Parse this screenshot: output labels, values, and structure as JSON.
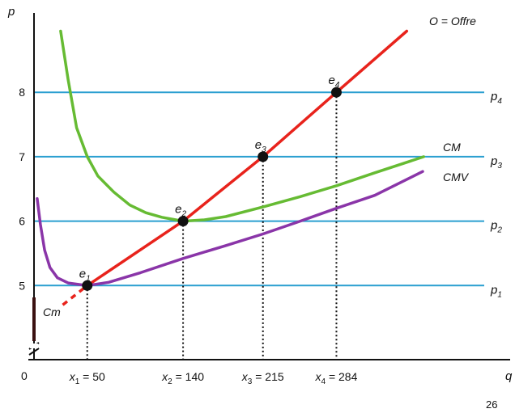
{
  "page_number": "26",
  "chart_data": {
    "type": "line",
    "xlabel": "q",
    "ylabel": "p",
    "origin_label": "0",
    "ylim": [
      4,
      9
    ],
    "xlim": [
      0,
      350
    ],
    "y_ticks": [
      5,
      6,
      7,
      8
    ],
    "y_tick_labels": [
      "5",
      "6",
      "7",
      "8"
    ],
    "price_lines": [
      {
        "value": 5,
        "base": "p",
        "sub": "1"
      },
      {
        "value": 6,
        "base": "p",
        "sub": "2"
      },
      {
        "value": 7,
        "base": "p",
        "sub": "3"
      },
      {
        "value": 8,
        "base": "p",
        "sub": "4"
      }
    ],
    "quantity_labels": [
      {
        "value": 50,
        "base": "x",
        "sub": "1",
        "rest": " = 50"
      },
      {
        "value": 140,
        "base": "x",
        "sub": "2",
        "rest": " = 140"
      },
      {
        "value": 215,
        "base": "x",
        "sub": "3",
        "rest": " = 215"
      },
      {
        "value": 284,
        "base": "x",
        "sub": "4",
        "rest": " = 284"
      }
    ],
    "equilibria": [
      {
        "base": "e",
        "sub": "1",
        "q": 50,
        "p": 5
      },
      {
        "base": "e",
        "sub": "2",
        "q": 140,
        "p": 6
      },
      {
        "base": "e",
        "sub": "3",
        "q": 215,
        "p": 7
      },
      {
        "base": "e",
        "sub": "4",
        "q": 284,
        "p": 8
      }
    ],
    "series": [
      {
        "name": "O = Offre",
        "color": "#e8231c",
        "points": [
          [
            50,
            5
          ],
          [
            140,
            6
          ],
          [
            215,
            7
          ],
          [
            284,
            8
          ],
          [
            350,
            8.95
          ]
        ]
      },
      {
        "name": "CM",
        "color": "#66bb33",
        "points": [
          [
            25,
            8.95
          ],
          [
            32,
            8.2
          ],
          [
            40,
            7.45
          ],
          [
            50,
            7.0
          ],
          [
            60,
            6.7
          ],
          [
            75,
            6.45
          ],
          [
            90,
            6.25
          ],
          [
            105,
            6.13
          ],
          [
            120,
            6.06
          ],
          [
            140,
            6.0
          ],
          [
            160,
            6.02
          ],
          [
            180,
            6.07
          ],
          [
            215,
            6.22
          ],
          [
            250,
            6.38
          ],
          [
            284,
            6.55
          ],
          [
            320,
            6.75
          ],
          [
            366,
            7.0
          ]
        ]
      },
      {
        "name": "CMV",
        "color": "#8a35a8",
        "points": [
          [
            3,
            6.35
          ],
          [
            6,
            5.95
          ],
          [
            10,
            5.55
          ],
          [
            15,
            5.28
          ],
          [
            22,
            5.12
          ],
          [
            32,
            5.04
          ],
          [
            50,
            5.0
          ],
          [
            70,
            5.05
          ],
          [
            100,
            5.2
          ],
          [
            140,
            5.42
          ],
          [
            180,
            5.62
          ],
          [
            215,
            5.8
          ],
          [
            250,
            6.0
          ],
          [
            284,
            6.2
          ],
          [
            320,
            6.4
          ],
          [
            365,
            6.77
          ]
        ]
      },
      {
        "name": "Cm",
        "color": "#e8231c",
        "dashed": true,
        "points": [
          [
            27,
            4.7
          ],
          [
            50,
            5
          ]
        ]
      }
    ]
  }
}
